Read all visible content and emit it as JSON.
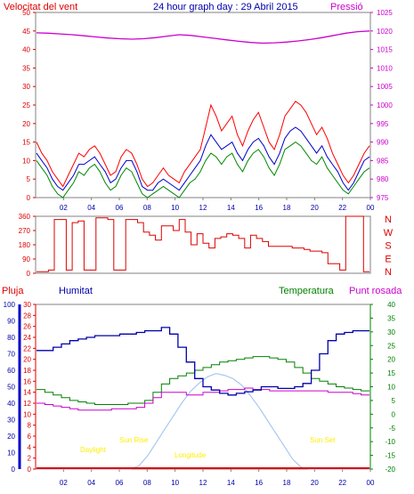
{
  "header": {
    "wind_label": "Velocitat del vent",
    "title": "24 hour graph day : 29 Abril 2015",
    "pressure_label": "Pressió"
  },
  "legend": {
    "rain": "Pluja",
    "humidity": "Humitat",
    "temperature": "Temperatura",
    "dew_point": "Punt rosada"
  },
  "annotations": {
    "daylight": "Daylight",
    "sunrise": "Sun Rise",
    "solar_noon": "Longitude",
    "sunset": "Sun Set"
  },
  "colors": {
    "wind_gust": "#ff0000",
    "wind_avg": "#0000cc",
    "wind_run": "#008800",
    "pressure": "#cc00cc",
    "direction": "#dd0000",
    "humidity": "#0000aa",
    "temperature": "#008000",
    "dew_point": "#cc00cc",
    "rain": "#dd0000",
    "solar": "#a8c8f0",
    "annotation": "#ffee00",
    "axis": "#808080",
    "grid": "#d0d0d0"
  },
  "chart_data": [
    {
      "type": "line",
      "title": "24 hour graph day : 29 Abril 2015",
      "x_ticks": [
        "02",
        "04",
        "06",
        "08",
        "10",
        "12",
        "14",
        "16",
        "18",
        "20",
        "22",
        "00"
      ],
      "y_left_label": "Velocitat del vent",
      "y_left_ticks": [
        0,
        5,
        10,
        15,
        20,
        25,
        30,
        35,
        40,
        45,
        50
      ],
      "y_right_label": "Pressió",
      "y_right_ticks": [
        975,
        980,
        985,
        990,
        995,
        1000,
        1005,
        1010,
        1015,
        1020,
        1025
      ],
      "ylim_left": [
        0,
        50
      ],
      "ylim_right": [
        975,
        1025
      ],
      "series": [
        {
          "name": "wind_gust",
          "axis": "left",
          "values": [
            15,
            12,
            10,
            7,
            5,
            3,
            6,
            9,
            12,
            11,
            13,
            14,
            12,
            9,
            6,
            7,
            11,
            13,
            12,
            9,
            5,
            3,
            4,
            6,
            8,
            6,
            5,
            4,
            7,
            9,
            11,
            13,
            19,
            25,
            22,
            18,
            20,
            22,
            17,
            14,
            18,
            21,
            23,
            19,
            15,
            13,
            17,
            22,
            24,
            26,
            25,
            23,
            20,
            17,
            19,
            16,
            12,
            9,
            6,
            4,
            6,
            9,
            12,
            14
          ]
        },
        {
          "name": "wind_avg",
          "axis": "left",
          "values": [
            12,
            10,
            8,
            5,
            3,
            2,
            4,
            6,
            9,
            9,
            10,
            11,
            9,
            7,
            4,
            5,
            8,
            10,
            10,
            7,
            3,
            2,
            2,
            4,
            5,
            4,
            3,
            2,
            4,
            6,
            8,
            10,
            14,
            17,
            15,
            13,
            14,
            15,
            12,
            10,
            13,
            15,
            16,
            14,
            11,
            9,
            12,
            16,
            18,
            19,
            18,
            16,
            14,
            12,
            14,
            11,
            9,
            7,
            4,
            2,
            4,
            7,
            10,
            11
          ]
        },
        {
          "name": "wind_run",
          "axis": "left",
          "values": [
            10,
            8,
            6,
            3,
            1,
            0,
            2,
            4,
            7,
            6,
            8,
            9,
            7,
            4,
            2,
            3,
            6,
            8,
            7,
            4,
            1,
            0,
            1,
            2,
            3,
            2,
            1,
            0,
            2,
            4,
            5,
            7,
            10,
            12,
            11,
            9,
            11,
            12,
            9,
            7,
            10,
            12,
            13,
            11,
            8,
            6,
            9,
            13,
            14,
            15,
            14,
            12,
            10,
            9,
            11,
            8,
            6,
            4,
            2,
            1,
            3,
            5,
            7,
            8
          ]
        },
        {
          "name": "pressure",
          "axis": "right",
          "values": [
            1019.5,
            1019.4,
            1019.2,
            1019.0,
            1018.7,
            1018.4,
            1018.1,
            1017.9,
            1017.8,
            1017.9,
            1018.2,
            1018.6,
            1019.0,
            1018.8,
            1018.4,
            1018.0,
            1017.6,
            1017.2,
            1016.9,
            1016.7,
            1016.8,
            1017.0,
            1017.3,
            1017.7,
            1018.2,
            1018.8,
            1019.4,
            1019.8,
            1020.0
          ]
        }
      ]
    },
    {
      "type": "line",
      "y_left_ticks": [
        0,
        90,
        180,
        270,
        360
      ],
      "ylim": [
        0,
        360
      ],
      "y_right_ticks": [
        "N",
        "W",
        "S",
        "E",
        "N"
      ],
      "series": [
        {
          "name": "wind_direction",
          "values": [
            10,
            10,
            20,
            340,
            340,
            20,
            320,
            330,
            20,
            20,
            350,
            350,
            340,
            20,
            20,
            340,
            340,
            320,
            260,
            240,
            210,
            300,
            300,
            270,
            340,
            260,
            180,
            250,
            190,
            160,
            220,
            230,
            250,
            240,
            220,
            160,
            240,
            220,
            200,
            170,
            170,
            170,
            170,
            160,
            160,
            150,
            140,
            140,
            130,
            60,
            60,
            20,
            360,
            360,
            360,
            10
          ]
        }
      ]
    },
    {
      "type": "line",
      "x_ticks": [
        "02",
        "04",
        "06",
        "08",
        "10",
        "12",
        "14",
        "16",
        "18",
        "20",
        "22",
        "00"
      ],
      "y_humidity_ticks": [
        0,
        10,
        20,
        30,
        40,
        50,
        60,
        70,
        80,
        90,
        100
      ],
      "y_rain_ticks": [
        0,
        2,
        4,
        6,
        8,
        10,
        12,
        14,
        16,
        18,
        20,
        22,
        24,
        26,
        28,
        30
      ],
      "y_temp_ticks": [
        -20,
        -15,
        -10,
        -5,
        0,
        5,
        10,
        15,
        20,
        25,
        30,
        35,
        40
      ],
      "ylim_humidity": [
        0,
        100
      ],
      "ylim_rain": [
        0,
        30
      ],
      "ylim_temp": [
        -20,
        40
      ],
      "series": [
        {
          "name": "humidity",
          "axis": "humidity",
          "values": [
            72,
            72,
            74,
            76,
            78,
            79,
            80,
            81,
            81,
            81,
            82,
            82,
            83,
            84,
            84,
            86,
            82,
            74,
            65,
            55,
            50,
            48,
            46,
            45,
            46,
            47,
            48,
            50,
            50,
            49,
            49,
            50,
            52,
            60,
            70,
            78,
            82,
            83,
            84,
            84
          ]
        },
        {
          "name": "temperature",
          "axis": "temp",
          "values": [
            9,
            8,
            7,
            6,
            5,
            4.5,
            4,
            3.5,
            3.5,
            3.5,
            3.5,
            4,
            4,
            5,
            8,
            11,
            13,
            14,
            15,
            16,
            17,
            18,
            19,
            19.5,
            20,
            20.5,
            21,
            21,
            20.5,
            20,
            19,
            17,
            15,
            13,
            12,
            11,
            10,
            9.5,
            9,
            8.5
          ]
        },
        {
          "name": "dew_point",
          "axis": "temp",
          "values": [
            4,
            3.5,
            3,
            2.5,
            2,
            1.5,
            1.5,
            1.5,
            1.5,
            2,
            2,
            2,
            2.5,
            4,
            6,
            8,
            8,
            8,
            7,
            7,
            8,
            8,
            8.5,
            9,
            9,
            9.5,
            9,
            9,
            8.5,
            8.5,
            8.5,
            8.5,
            8.5,
            8.5,
            8.5,
            8,
            8,
            8,
            7.5,
            7
          ]
        },
        {
          "name": "solar",
          "axis": "humidity",
          "values": [
            0,
            0,
            0,
            0,
            0,
            0,
            0,
            0,
            0,
            0,
            0,
            0,
            2,
            8,
            16,
            24,
            32,
            40,
            47,
            52,
            56,
            58,
            57,
            55,
            51,
            45,
            38,
            30,
            22,
            14,
            6,
            1,
            0,
            0,
            0,
            0,
            0,
            0,
            0,
            0
          ]
        },
        {
          "name": "rain",
          "axis": "rain",
          "values": [
            0,
            0,
            0,
            0,
            0,
            0,
            0,
            0,
            0,
            0,
            0,
            0,
            0,
            0,
            0,
            0,
            0,
            0,
            0,
            0,
            0,
            0,
            0,
            0,
            0,
            0,
            0,
            0,
            0,
            0,
            0,
            0,
            0,
            0,
            0,
            0,
            0,
            0,
            0,
            0
          ]
        }
      ]
    }
  ]
}
